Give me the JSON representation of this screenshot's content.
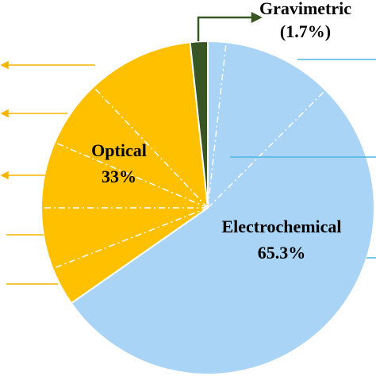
{
  "chart_data": {
    "type": "pie",
    "categories": [
      "Electrochemical",
      "Optical",
      "Gravimetric"
    ],
    "values": [
      65.3,
      33,
      1.7
    ],
    "value_labels": [
      "65.3%",
      "33%",
      "(1.7%)"
    ],
    "colors": [
      "#a9d4f5",
      "#ffc000",
      "#375623"
    ]
  }
}
